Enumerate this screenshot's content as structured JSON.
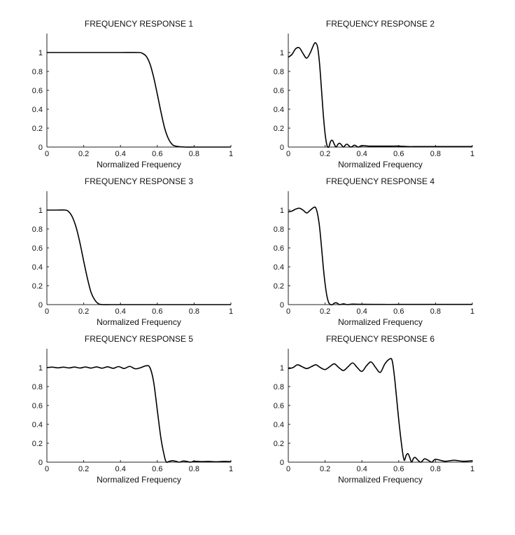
{
  "figure": {
    "background": "#ffffff",
    "line_color": "#000000"
  },
  "chart_data": [
    {
      "type": "line",
      "title": "FREQUENCY RESPONSE 1",
      "xlabel": "Normalized Frequency",
      "ylabel": "",
      "xlim": [
        0,
        1
      ],
      "ylim": [
        0,
        1.2
      ],
      "xticks": [
        "0",
        "0.2",
        "0.4",
        "0.6",
        "0.8",
        "1"
      ],
      "yticks": [
        "0",
        "0.2",
        "0.4",
        "0.6",
        "0.8",
        "1"
      ],
      "grid": false,
      "x": [
        0,
        0.1,
        0.2,
        0.3,
        0.4,
        0.5,
        0.52,
        0.54,
        0.56,
        0.58,
        0.6,
        0.62,
        0.64,
        0.66,
        0.68,
        0.7,
        0.75,
        0.8,
        0.9,
        1.0
      ],
      "y": [
        1,
        1,
        1,
        1,
        1,
        1,
        0.99,
        0.96,
        0.88,
        0.74,
        0.56,
        0.37,
        0.2,
        0.09,
        0.03,
        0.01,
        0,
        0,
        0,
        0
      ]
    },
    {
      "type": "line",
      "title": "FREQUENCY RESPONSE 2",
      "xlabel": "Normalized Frequency",
      "ylabel": "",
      "xlim": [
        0,
        1
      ],
      "ylim": [
        0,
        1.2
      ],
      "xticks": [
        "0",
        "0.2",
        "0.4",
        "0.6",
        "0.8",
        "1"
      ],
      "yticks": [
        "0",
        "0.2",
        "0.4",
        "0.6",
        "0.8",
        "1"
      ],
      "grid": false,
      "x": [
        0,
        0.02,
        0.04,
        0.06,
        0.08,
        0.1,
        0.12,
        0.14,
        0.15,
        0.16,
        0.17,
        0.18,
        0.19,
        0.2,
        0.21,
        0.22,
        0.23,
        0.24,
        0.25,
        0.26,
        0.27,
        0.28,
        0.29,
        0.3,
        0.31,
        0.32,
        0.34,
        0.36,
        0.38,
        0.4,
        0.44,
        0.48,
        0.52,
        0.56,
        0.6,
        0.65,
        0.7,
        0.75,
        0.8,
        0.85,
        0.9,
        0.95,
        1.0
      ],
      "y": [
        0.95,
        0.98,
        1.04,
        1.05,
        0.99,
        0.94,
        1.0,
        1.09,
        1.1,
        1.05,
        0.88,
        0.62,
        0.35,
        0.14,
        0.02,
        0.0,
        0.06,
        0.07,
        0.03,
        0.0,
        0.03,
        0.04,
        0.02,
        0.0,
        0.02,
        0.03,
        0.0,
        0.02,
        0.0,
        0.015,
        0.01,
        0.01,
        0.01,
        0.01,
        0.01,
        0.005,
        0.005,
        0.005,
        0.005,
        0.005,
        0.005,
        0.005,
        0.005
      ]
    },
    {
      "type": "line",
      "title": "FREQUENCY RESPONSE 3",
      "xlabel": "Normalized Frequency",
      "ylabel": "",
      "xlim": [
        0,
        1
      ],
      "ylim": [
        0,
        1.2
      ],
      "xticks": [
        "0",
        "0.2",
        "0.4",
        "0.6",
        "0.8",
        "1"
      ],
      "yticks": [
        "0",
        "0.2",
        "0.4",
        "0.6",
        "0.8",
        "1"
      ],
      "grid": false,
      "x": [
        0,
        0.05,
        0.1,
        0.12,
        0.14,
        0.16,
        0.18,
        0.2,
        0.22,
        0.24,
        0.26,
        0.28,
        0.3,
        0.35,
        0.4,
        0.6,
        0.8,
        1.0
      ],
      "y": [
        1,
        1,
        1,
        0.98,
        0.92,
        0.81,
        0.65,
        0.46,
        0.28,
        0.13,
        0.05,
        0.01,
        0,
        0,
        0,
        0,
        0,
        0
      ]
    },
    {
      "type": "line",
      "title": "FREQUENCY RESPONSE 4",
      "xlabel": "Normalized Frequency",
      "ylabel": "",
      "xlim": [
        0,
        1
      ],
      "ylim": [
        0,
        1.2
      ],
      "xticks": [
        "0",
        "0.2",
        "0.4",
        "0.6",
        "0.8",
        "1"
      ],
      "yticks": [
        "0",
        "0.2",
        "0.4",
        "0.6",
        "0.8",
        "1"
      ],
      "grid": false,
      "x": [
        0,
        0.02,
        0.04,
        0.06,
        0.08,
        0.1,
        0.12,
        0.14,
        0.15,
        0.16,
        0.17,
        0.18,
        0.19,
        0.2,
        0.21,
        0.22,
        0.23,
        0.24,
        0.25,
        0.26,
        0.27,
        0.28,
        0.3,
        0.32,
        0.35,
        0.4,
        0.5,
        0.6,
        0.7,
        0.8,
        0.9,
        1.0
      ],
      "y": [
        0.98,
        0.99,
        1.01,
        1.02,
        1.0,
        0.97,
        1.0,
        1.03,
        1.02,
        0.95,
        0.82,
        0.62,
        0.4,
        0.22,
        0.09,
        0.02,
        0.0,
        0.0,
        0.015,
        0.02,
        0.01,
        0.0,
        0.008,
        0.0,
        0.005,
        0.003,
        0.002,
        0.002,
        0.002,
        0.002,
        0.002,
        0.002
      ]
    },
    {
      "type": "line",
      "title": "FREQUENCY RESPONSE 5",
      "xlabel": "Normalized Frequency",
      "ylabel": "",
      "xlim": [
        0,
        1
      ],
      "ylim": [
        0,
        1.2
      ],
      "xticks": [
        "0",
        "0.2",
        "0.4",
        "0.6",
        "0.8",
        "1"
      ],
      "yticks": [
        "0",
        "0.2",
        "0.4",
        "0.6",
        "0.8",
        "1"
      ],
      "grid": false,
      "x": [
        0,
        0.03,
        0.06,
        0.09,
        0.12,
        0.15,
        0.18,
        0.21,
        0.24,
        0.27,
        0.3,
        0.33,
        0.36,
        0.39,
        0.42,
        0.45,
        0.48,
        0.51,
        0.54,
        0.56,
        0.58,
        0.6,
        0.62,
        0.64,
        0.65,
        0.66,
        0.68,
        0.7,
        0.72,
        0.74,
        0.76,
        0.78,
        0.8,
        0.84,
        0.88,
        0.92,
        0.96,
        1.0
      ],
      "y": [
        1.0,
        1.005,
        0.998,
        1.005,
        0.997,
        1.006,
        0.996,
        1.007,
        0.995,
        1.008,
        0.994,
        1.009,
        0.993,
        1.011,
        0.991,
        1.013,
        0.988,
        1.0,
        1.02,
        1.0,
        0.85,
        0.55,
        0.25,
        0.05,
        0.0,
        0.005,
        0.015,
        0.01,
        0.0,
        0.012,
        0.008,
        0.0,
        0.01,
        0.006,
        0.008,
        0.004,
        0.008,
        0.006
      ]
    },
    {
      "type": "line",
      "title": "FREQUENCY RESPONSE 6",
      "xlabel": "Normalized Frequency",
      "ylabel": "",
      "xlim": [
        0,
        1
      ],
      "ylim": [
        0,
        1.2
      ],
      "xticks": [
        "0",
        "0.2",
        "0.4",
        "0.6",
        "0.8",
        "1"
      ],
      "yticks": [
        "0",
        "0.2",
        "0.4",
        "0.6",
        "0.8",
        "1"
      ],
      "grid": false,
      "x": [
        0,
        0.025,
        0.05,
        0.075,
        0.1,
        0.125,
        0.15,
        0.175,
        0.2,
        0.225,
        0.25,
        0.275,
        0.3,
        0.325,
        0.35,
        0.375,
        0.4,
        0.425,
        0.45,
        0.475,
        0.5,
        0.525,
        0.55,
        0.565,
        0.58,
        0.6,
        0.62,
        0.63,
        0.64,
        0.65,
        0.66,
        0.67,
        0.68,
        0.69,
        0.7,
        0.72,
        0.74,
        0.76,
        0.78,
        0.8,
        0.85,
        0.9,
        0.95,
        1.0
      ],
      "y": [
        0.99,
        1.0,
        1.03,
        1.01,
        0.99,
        1.01,
        1.03,
        1.0,
        0.98,
        1.01,
        1.04,
        1.0,
        0.97,
        1.01,
        1.05,
        1.0,
        0.96,
        1.02,
        1.06,
        1.0,
        0.95,
        1.04,
        1.09,
        1.07,
        0.85,
        0.45,
        0.12,
        0.02,
        0.07,
        0.09,
        0.05,
        0.0,
        0.04,
        0.05,
        0.03,
        0.0,
        0.035,
        0.02,
        0.0,
        0.03,
        0.01,
        0.02,
        0.01,
        0.015
      ]
    }
  ]
}
